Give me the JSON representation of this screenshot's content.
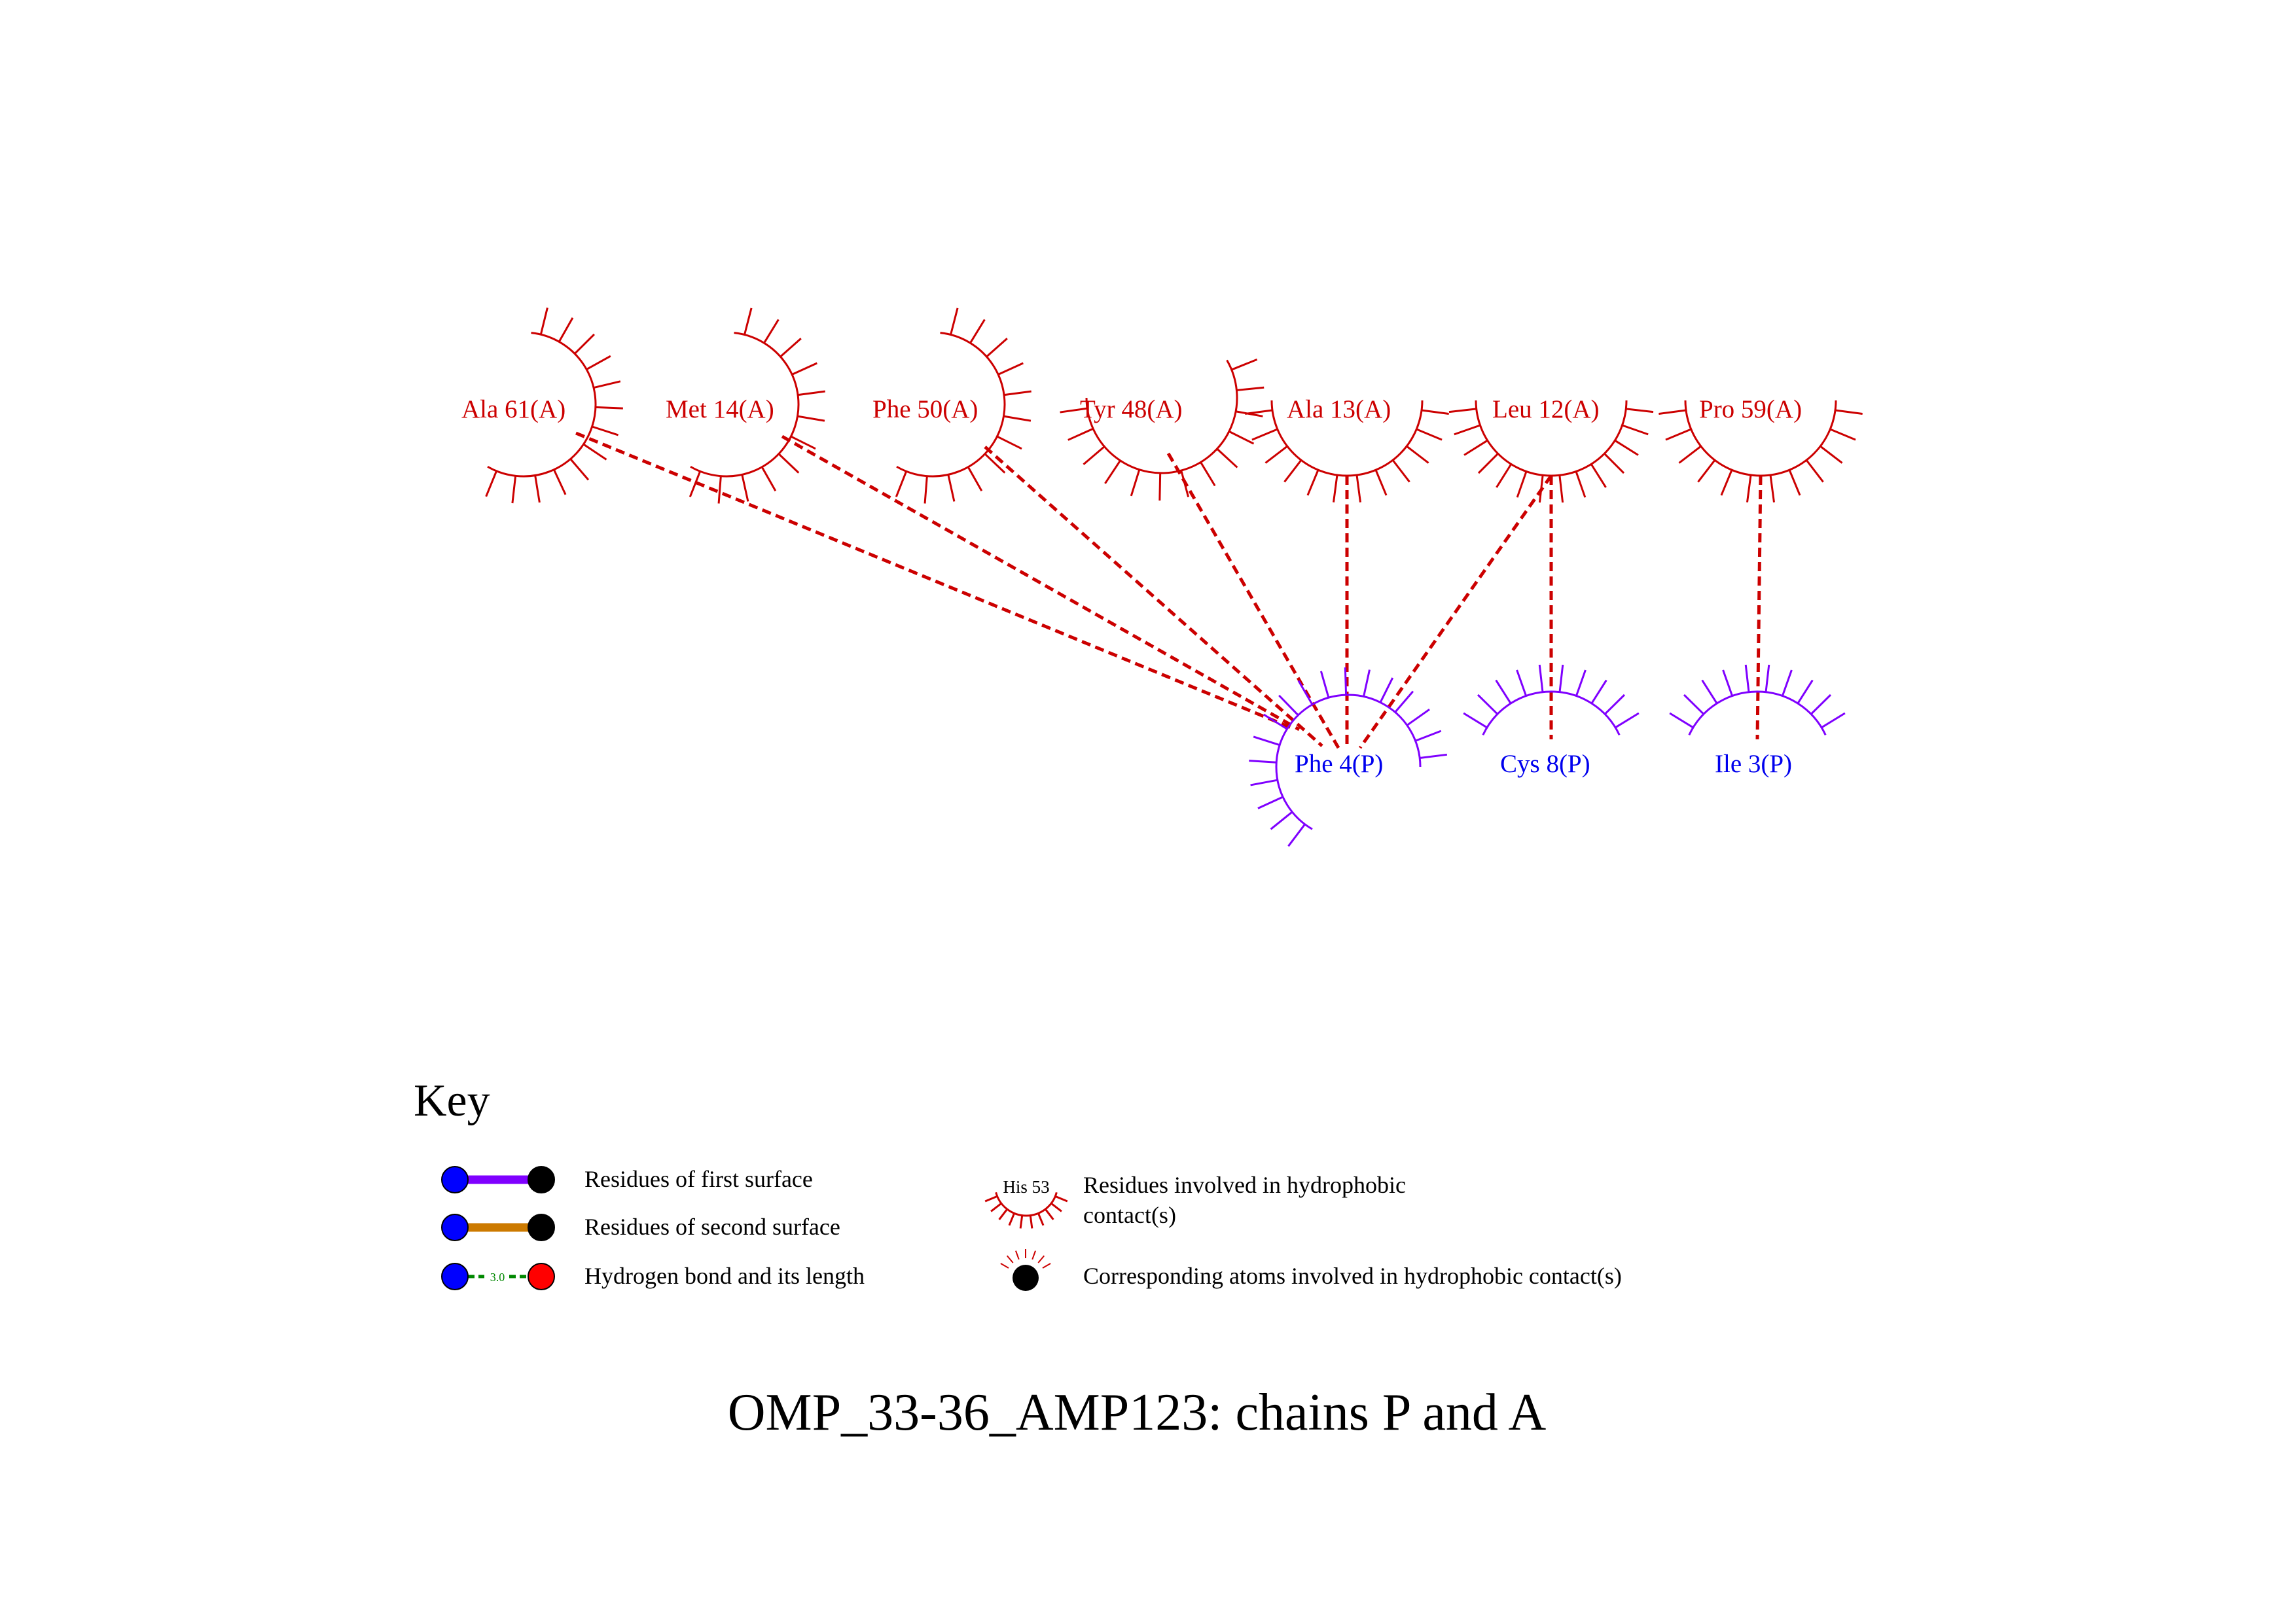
{
  "colors": {
    "chain_a": "#cc0000",
    "chain_p": "#7f00ff",
    "chain_p_label": "#0000ee",
    "contact_line": "#cc0000",
    "second_surface": "#cc7a00",
    "hbond": "#008800",
    "atom_n": "#0000ff",
    "atom_c": "#000000",
    "atom_o": "#ff0000"
  },
  "chain_a_residues": [
    {
      "id": "ala61",
      "label": "Ala 61(A)"
    },
    {
      "id": "met14",
      "label": "Met 14(A)"
    },
    {
      "id": "phe50",
      "label": "Phe 50(A)"
    },
    {
      "id": "tyr48",
      "label": "Tyr 48(A)"
    },
    {
      "id": "ala13",
      "label": "Ala 13(A)"
    },
    {
      "id": "leu12",
      "label": "Leu 12(A)"
    },
    {
      "id": "pro59",
      "label": "Pro 59(A)"
    }
  ],
  "chain_p_residues": [
    {
      "id": "phe4",
      "label": "Phe 4(P)"
    },
    {
      "id": "cys8",
      "label": "Cys 8(P)"
    },
    {
      "id": "ile3",
      "label": "Ile 3(P)"
    }
  ],
  "contacts": [
    {
      "from": "ala61",
      "to": "phe4"
    },
    {
      "from": "met14",
      "to": "phe4"
    },
    {
      "from": "phe50",
      "to": "phe4"
    },
    {
      "from": "tyr48",
      "to": "phe4"
    },
    {
      "from": "ala13",
      "to": "phe4"
    },
    {
      "from": "leu12",
      "to": "phe4"
    },
    {
      "from": "leu12",
      "to": "cys8"
    },
    {
      "from": "pro59",
      "to": "ile3"
    }
  ],
  "key": {
    "title": "Key",
    "first_surface": "Residues of first surface",
    "second_surface": "Residues of second surface",
    "hbond": "Hydrogen bond and its length",
    "hbond_length": "3.0",
    "hydrophobic_example": "His 53",
    "hydrophobic_line1": "Residues involved in hydrophobic",
    "hydrophobic_line2": "contact(s)",
    "atoms_label": "Corresponding atoms involved in hydrophobic contact(s)"
  },
  "title": "OMP_33-36_AMP123: chains P and A"
}
